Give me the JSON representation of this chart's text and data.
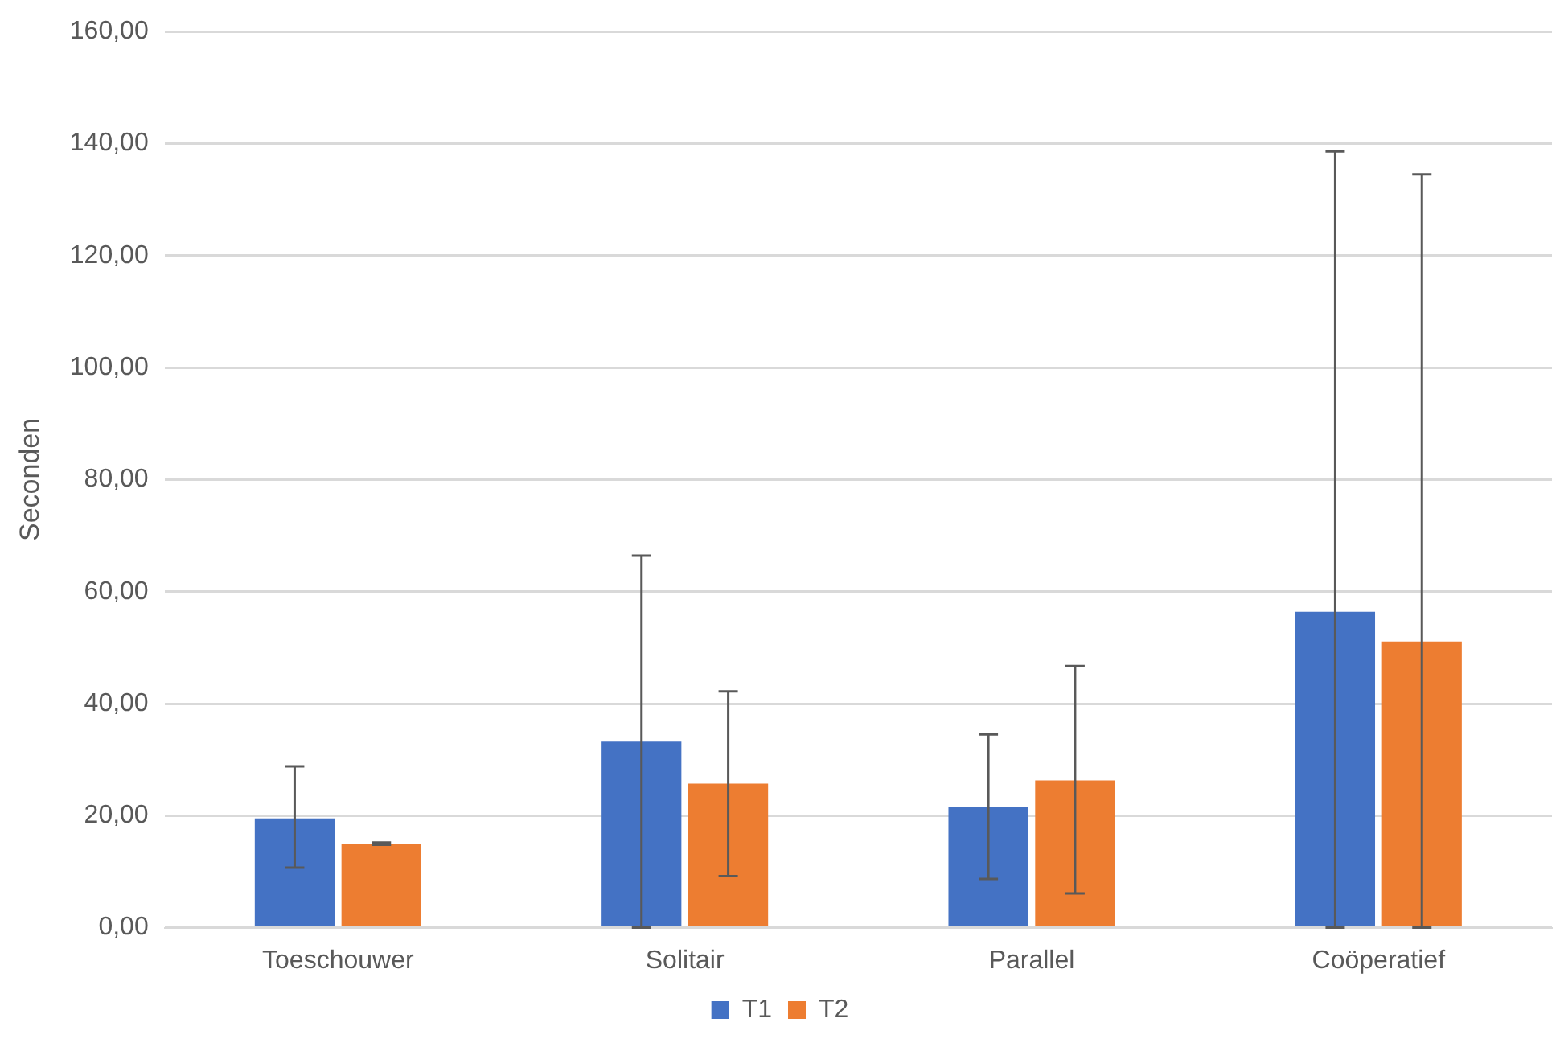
{
  "chart_data": {
    "type": "bar",
    "ylabel": "Seconden",
    "categories": [
      "Toeschouwer",
      "Solitair",
      "Parallel",
      "Coöperatief"
    ],
    "series": [
      {
        "name": "T1",
        "color": "#4472c4",
        "values": [
          19.5,
          33.2,
          21.5,
          56.4
        ],
        "errors": [
          [
            10.7,
            28.8
          ],
          [
            0,
            66.4
          ],
          [
            8.7,
            34.5
          ],
          [
            0,
            138.6
          ]
        ]
      },
      {
        "name": "T2",
        "color": "#ed7d31",
        "values": [
          15.0,
          25.7,
          26.3,
          51.1
        ],
        "errors": [
          [
            14.8,
            15.2
          ],
          [
            9.2,
            42.2
          ],
          [
            6.1,
            46.7
          ],
          [
            0,
            134.5
          ]
        ]
      }
    ],
    "ylim": [
      0,
      160
    ],
    "yticks": [
      {
        "value": 0,
        "label": "0,00"
      },
      {
        "value": 20,
        "label": "20,00"
      },
      {
        "value": 40,
        "label": "40,00"
      },
      {
        "value": 60,
        "label": "60,00"
      },
      {
        "value": 80,
        "label": "80,00"
      },
      {
        "value": 100,
        "label": "100,00"
      },
      {
        "value": 120,
        "label": "120,00"
      },
      {
        "value": 140,
        "label": "140,00"
      },
      {
        "value": 160,
        "label": "160,00"
      }
    ],
    "grid": "y",
    "legend": "bottom"
  }
}
